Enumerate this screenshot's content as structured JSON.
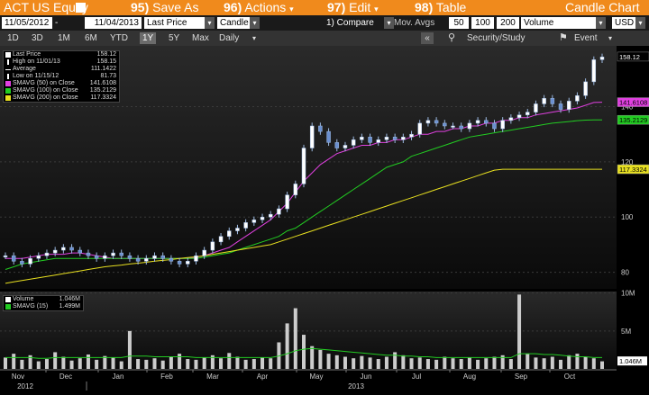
{
  "header": {
    "ticker": "ACT US Equity",
    "buttons": [
      {
        "num": "95)",
        "label": "Save As"
      },
      {
        "num": "96)",
        "label": "Actions"
      },
      {
        "num": "97)",
        "label": "Edit"
      },
      {
        "num": "98)",
        "label": "Table"
      }
    ],
    "title": "Candle Chart"
  },
  "toolbar": {
    "start_date": "11/05/2012",
    "end_date": "11/04/2013",
    "price_field": "Last Price",
    "chart_type": "Candle",
    "compare": "1) Compare",
    "mov_avgs_label": "Mov. Avgs",
    "mov_avgs": [
      "50",
      "100",
      "200"
    ],
    "volume_field": "Volume",
    "currency": "USD"
  },
  "periods": {
    "items": [
      "1D",
      "3D",
      "1M",
      "6M",
      "YTD",
      "1Y",
      "5Y",
      "Max"
    ],
    "selected": "1Y",
    "frequency": "Daily",
    "security_study": "Security/Study",
    "event": "Event"
  },
  "legend": {
    "items": [
      {
        "label": "Last Price",
        "value": "158.12",
        "color": "#ffffff"
      },
      {
        "label": "High on 11/01/13",
        "value": "158.15",
        "color": "#ffffff"
      },
      {
        "label": "Average",
        "value": "111.1422",
        "color": "#ffffff"
      },
      {
        "label": "Low on 11/15/12",
        "value": "81.73",
        "color": "#ffffff"
      },
      {
        "label": "SMAVG (50) on Close",
        "value": "141.6108",
        "color": "#e040e0"
      },
      {
        "label": "SMAVG (100) on Close",
        "value": "135.2129",
        "color": "#22cc22"
      },
      {
        "label": "SMAVG (200) on Close",
        "value": "117.3324",
        "color": "#e8e020"
      }
    ]
  },
  "volume_legend": {
    "items": [
      {
        "label": "Volume",
        "value": "1.046M",
        "color": "#ffffff"
      },
      {
        "label": "SMAVG (15)",
        "value": "1.499M",
        "color": "#22cc22"
      }
    ]
  },
  "chart_data": {
    "type": "candlestick",
    "price_axis": {
      "ticks": [
        "80",
        "100",
        "120",
        "140"
      ],
      "range": [
        74,
        162
      ]
    },
    "volume_axis": {
      "ticks": [
        "10M",
        "5M"
      ],
      "range": [
        0,
        10.2
      ]
    },
    "right_labels": [
      {
        "text": "158.12",
        "value": 158.12,
        "bg": "#000000",
        "fg": "#ffffff"
      },
      {
        "text": "141.6108",
        "value": 141.6108,
        "bg": "#e040e0",
        "fg": "#000000"
      },
      {
        "text": "135.2129",
        "value": 135.2129,
        "bg": "#22cc22",
        "fg": "#000000"
      },
      {
        "text": "117.3324",
        "value": 117.3324,
        "bg": "#e8e020",
        "fg": "#000000"
      }
    ],
    "volume_right_label": {
      "text": "1.046M",
      "value": 1.046
    },
    "months": [
      "Nov",
      "Dec",
      "Jan",
      "Feb",
      "Mar",
      "Apr",
      "May",
      "Jun",
      "Jul",
      "Aug",
      "Sep",
      "Oct"
    ],
    "years": [
      "2012",
      "2013"
    ],
    "price_series": [
      {
        "name": "Last Price",
        "color": "#ffffff",
        "values": [
          86,
          84,
          83,
          85,
          86,
          87,
          88,
          89,
          88,
          87,
          86,
          85,
          86,
          87,
          86,
          85,
          84,
          85,
          86,
          85,
          84,
          83,
          84,
          86,
          88,
          91,
          93,
          95,
          96,
          98,
          99,
          100,
          101,
          103,
          108,
          112,
          125,
          133,
          131,
          127,
          125,
          126,
          128,
          129,
          127,
          128,
          129,
          128,
          129,
          130,
          134,
          135,
          134,
          133,
          133,
          132,
          134,
          135,
          134,
          132,
          135,
          136,
          137,
          138,
          141,
          143,
          141,
          139,
          142,
          144,
          149,
          157,
          158
        ]
      },
      {
        "name": "SMAVG (50)",
        "color": "#e040e0",
        "values": [
          85,
          85,
          85,
          85.5,
          86,
          86.5,
          86.5,
          86.5,
          87,
          87,
          86.5,
          86,
          85.5,
          85,
          85,
          85,
          85,
          85,
          85,
          85,
          85,
          85,
          85,
          85.5,
          86,
          87,
          88,
          89,
          91,
          93,
          95,
          97,
          99,
          102,
          105,
          109,
          113,
          116,
          119,
          121,
          123,
          124,
          125,
          126,
          126,
          127,
          127,
          128,
          128,
          129,
          130,
          130,
          131,
          131,
          132,
          132,
          133,
          133,
          134,
          134,
          135,
          135,
          136,
          136,
          137,
          137.5,
          138,
          138.5,
          139,
          139.5,
          140.5,
          141.5,
          141.6
        ]
      },
      {
        "name": "SMAVG (100)",
        "color": "#22cc22",
        "values": [
          81,
          82,
          83,
          83.5,
          84,
          84.5,
          85,
          85,
          85,
          85,
          85,
          85,
          85,
          85,
          85,
          85,
          85,
          85,
          85,
          85,
          85,
          85,
          85,
          85,
          85.5,
          86,
          86.5,
          87,
          88,
          89,
          90,
          91,
          92,
          93,
          95,
          96,
          98,
          100,
          102,
          104,
          106,
          108,
          110,
          112,
          114,
          116,
          118,
          119,
          120,
          122,
          123,
          124,
          125,
          126,
          127,
          128,
          129,
          129.5,
          130,
          130.5,
          131,
          131.5,
          132,
          132.5,
          133,
          133.5,
          134,
          134.3,
          134.6,
          134.9,
          135.1,
          135.2,
          135.2
        ]
      },
      {
        "name": "SMAVG (200)",
        "color": "#e8e020",
        "values": [
          76,
          76.5,
          77,
          77.5,
          78,
          78.5,
          79,
          79.5,
          80,
          80.5,
          81,
          81.5,
          82,
          82.3,
          82.6,
          83,
          83.3,
          83.6,
          84,
          84.3,
          84.6,
          85,
          85.3,
          85.6,
          86,
          86.5,
          87,
          87.5,
          88,
          88.5,
          89,
          89.5,
          90,
          91,
          92,
          93,
          94,
          95,
          96,
          97,
          98,
          99,
          100,
          101,
          102,
          103,
          104,
          105,
          106,
          107,
          108,
          109,
          110,
          111,
          112,
          113,
          114,
          115,
          116,
          117,
          117.3,
          117.3,
          117.3,
          117.3,
          117.3,
          117.3,
          117.3,
          117.3,
          117.3,
          117.3,
          117.3,
          117.3,
          117.3
        ]
      }
    ],
    "volume_series": [
      {
        "name": "Volume",
        "color": "#cccccc",
        "values": [
          1.5,
          2.0,
          1.2,
          1.8,
          1.0,
          1.3,
          2.2,
          1.6,
          1.1,
          1.4,
          1.9,
          1.2,
          1.7,
          1.5,
          1.0,
          5.0,
          1.3,
          1.2,
          1.4,
          1.1,
          1.6,
          2.0,
          1.3,
          1.2,
          1.5,
          1.8,
          1.4,
          2.1,
          1.6,
          1.2,
          1.3,
          1.5,
          1.4,
          3.5,
          6.0,
          8.0,
          4.5,
          3.0,
          2.5,
          2.0,
          1.8,
          1.6,
          1.4,
          1.7,
          1.5,
          1.3,
          1.6,
          2.2,
          1.8,
          1.4,
          1.5,
          1.3,
          1.2,
          1.6,
          1.4,
          1.3,
          1.5,
          1.2,
          1.4,
          1.6,
          1.8,
          1.3,
          9.8,
          2.0,
          1.5,
          1.4,
          1.6,
          1.2,
          1.8,
          2.0,
          1.6,
          1.4,
          1.0
        ]
      },
      {
        "name": "SMAVG (15)",
        "color": "#22cc22",
        "values": [
          1.5,
          1.5,
          1.5,
          1.5,
          1.4,
          1.4,
          1.5,
          1.5,
          1.5,
          1.5,
          1.5,
          1.5,
          1.5,
          1.5,
          1.5,
          1.7,
          1.7,
          1.7,
          1.6,
          1.6,
          1.6,
          1.6,
          1.6,
          1.5,
          1.5,
          1.5,
          1.5,
          1.5,
          1.5,
          1.5,
          1.5,
          1.5,
          1.5,
          1.7,
          2.0,
          2.4,
          2.6,
          2.7,
          2.6,
          2.5,
          2.4,
          2.3,
          2.2,
          2.1,
          2.0,
          1.9,
          1.8,
          1.8,
          1.7,
          1.7,
          1.6,
          1.6,
          1.5,
          1.5,
          1.5,
          1.5,
          1.5,
          1.5,
          1.5,
          1.5,
          1.5,
          1.5,
          2.0,
          2.0,
          2.0,
          1.9,
          1.9,
          1.8,
          1.7,
          1.6,
          1.6,
          1.5,
          1.5
        ]
      }
    ]
  }
}
